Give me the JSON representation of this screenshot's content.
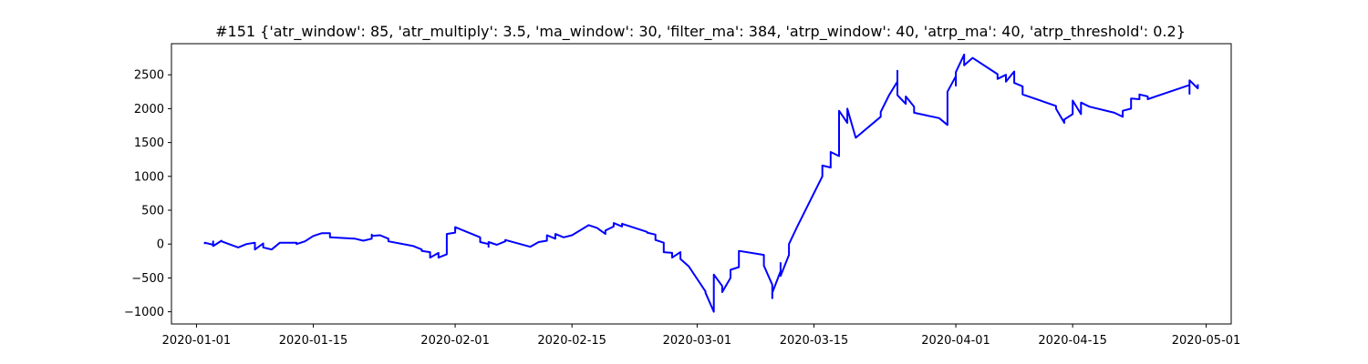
{
  "chart_data": {
    "type": "line",
    "title": "#151 {'atr_window': 85, 'atr_multiply': 3.5, 'ma_window': 30, 'filter_ma': 384, 'atrp_window': 40, 'atrp_ma': 40, 'atrp_threshold': 0.2}",
    "xlabel": "",
    "ylabel": "",
    "x_is_date": true,
    "xlim": [
      "2019-12-29",
      "2020-05-04"
    ],
    "ylim": [
      -1180,
      2960
    ],
    "x_ticks": [
      "2020-01-01",
      "2020-01-15",
      "2020-02-01",
      "2020-02-15",
      "2020-03-01",
      "2020-03-15",
      "2020-04-01",
      "2020-04-15",
      "2020-05-01"
    ],
    "y_ticks": [
      -1000,
      -500,
      0,
      500,
      1000,
      1500,
      2000,
      2500
    ],
    "grid": false,
    "legend": "none",
    "color": "#0000ff",
    "series": [
      {
        "x": [
          "2020-01-02",
          "2020-01-02",
          "2020-01-03",
          "2020-01-03",
          "2020-01-03",
          "2020-01-03",
          "2020-01-04",
          "2020-01-04",
          "2020-01-06",
          "2020-01-07",
          "2020-01-08",
          "2020-01-08",
          "2020-01-08",
          "2020-01-09",
          "2020-01-09",
          "2020-01-10",
          "2020-01-11",
          "2020-01-13",
          "2020-01-13",
          "2020-01-14",
          "2020-01-15",
          "2020-01-15",
          "2020-01-16",
          "2020-01-17",
          "2020-01-17",
          "2020-01-20",
          "2020-01-21",
          "2020-01-22",
          "2020-01-22",
          "2020-01-22",
          "2020-01-23",
          "2020-01-24",
          "2020-01-24",
          "2020-01-27",
          "2020-01-28",
          "2020-01-28",
          "2020-01-29",
          "2020-01-29",
          "2020-01-30",
          "2020-01-30",
          "2020-01-31",
          "2020-01-31",
          "2020-02-01",
          "2020-02-01",
          "2020-02-03",
          "2020-02-04",
          "2020-02-04",
          "2020-02-05",
          "2020-02-05",
          "2020-02-05",
          "2020-02-06",
          "2020-02-07",
          "2020-02-07",
          "2020-02-10",
          "2020-02-11",
          "2020-02-12",
          "2020-02-12",
          "2020-02-13",
          "2020-02-13",
          "2020-02-14",
          "2020-02-15",
          "2020-02-17",
          "2020-02-18",
          "2020-02-19",
          "2020-02-19",
          "2020-02-20",
          "2020-02-20",
          "2020-02-21",
          "2020-02-21",
          "2020-02-24",
          "2020-02-24",
          "2020-02-25",
          "2020-02-25",
          "2020-02-26",
          "2020-02-26",
          "2020-02-27",
          "2020-02-27",
          "2020-02-28",
          "2020-02-28",
          "2020-02-29",
          "2020-03-02",
          "2020-03-02",
          "2020-03-03",
          "2020-03-03",
          "2020-03-03",
          "2020-03-04",
          "2020-03-04",
          "2020-03-05",
          "2020-03-05",
          "2020-03-06",
          "2020-03-06",
          "2020-03-06",
          "2020-03-09",
          "2020-03-09",
          "2020-03-10",
          "2020-03-10",
          "2020-03-10",
          "2020-03-11",
          "2020-03-11",
          "2020-03-11",
          "2020-03-12",
          "2020-03-12",
          "2020-03-12",
          "2020-03-13",
          "2020-03-16",
          "2020-03-16",
          "2020-03-17",
          "2020-03-17",
          "2020-03-17",
          "2020-03-18",
          "2020-03-18",
          "2020-03-18",
          "2020-03-18",
          "2020-03-19",
          "2020-03-19",
          "2020-03-20",
          "2020-03-23",
          "2020-03-23",
          "2020-03-24",
          "2020-03-25",
          "2020-03-25",
          "2020-03-25",
          "2020-03-26",
          "2020-03-26",
          "2020-03-27",
          "2020-03-27",
          "2020-03-30",
          "2020-03-31",
          "2020-03-31",
          "2020-04-01",
          "2020-04-01",
          "2020-04-01",
          "2020-04-02",
          "2020-04-02",
          "2020-04-03",
          "2020-04-06",
          "2020-04-06",
          "2020-04-07",
          "2020-04-07",
          "2020-04-07",
          "2020-04-08",
          "2020-04-08",
          "2020-04-09",
          "2020-04-09",
          "2020-04-13",
          "2020-04-13",
          "2020-04-14",
          "2020-04-14",
          "2020-04-15",
          "2020-04-15",
          "2020-04-16",
          "2020-04-16",
          "2020-04-17",
          "2020-04-20",
          "2020-04-21",
          "2020-04-21",
          "2020-04-22",
          "2020-04-22",
          "2020-04-23",
          "2020-04-23",
          "2020-04-24",
          "2020-04-24",
          "2020-04-29",
          "2020-04-29",
          "2020-04-29",
          "2020-04-30",
          "2020-04-30"
        ],
        "values": [
          0,
          20,
          -10,
          40,
          20,
          -30,
          50,
          40,
          -50,
          0,
          20,
          0,
          -80,
          10,
          -50,
          -80,
          20,
          20,
          0,
          40,
          120,
          120,
          160,
          160,
          100,
          80,
          50,
          80,
          140,
          120,
          130,
          80,
          40,
          -30,
          -80,
          -100,
          -120,
          -200,
          -130,
          -200,
          -150,
          150,
          170,
          250,
          150,
          100,
          30,
          0,
          -40,
          30,
          -10,
          40,
          60,
          -40,
          30,
          50,
          130,
          80,
          150,
          100,
          130,
          280,
          240,
          150,
          200,
          260,
          310,
          260,
          300,
          180,
          170,
          140,
          60,
          20,
          -120,
          -130,
          -200,
          -120,
          -220,
          -330,
          -700,
          -720,
          -1000,
          -560,
          -450,
          -620,
          -710,
          -500,
          -380,
          -340,
          -290,
          -100,
          -160,
          -320,
          -600,
          -800,
          -720,
          -400,
          -280,
          -470,
          -160,
          -30,
          0,
          260,
          1000,
          1160,
          1130,
          1280,
          1360,
          1300,
          1700,
          1880,
          1970,
          1790,
          2000,
          1570,
          1880,
          1950,
          2200,
          2400,
          2560,
          2200,
          2070,
          2180,
          2030,
          1940,
          1860,
          1760,
          2250,
          2480,
          2340,
          2540,
          2800,
          2640,
          2750,
          2510,
          2440,
          2500,
          2470,
          2400,
          2550,
          2380,
          2330,
          2210,
          2040,
          2000,
          1790,
          1840,
          1920,
          2120,
          1920,
          2090,
          2030,
          1940,
          1880,
          1970,
          2000,
          2150,
          2140,
          2210,
          2180,
          2140,
          2350,
          2220,
          2420,
          2300,
          2360
        ]
      }
    ]
  }
}
